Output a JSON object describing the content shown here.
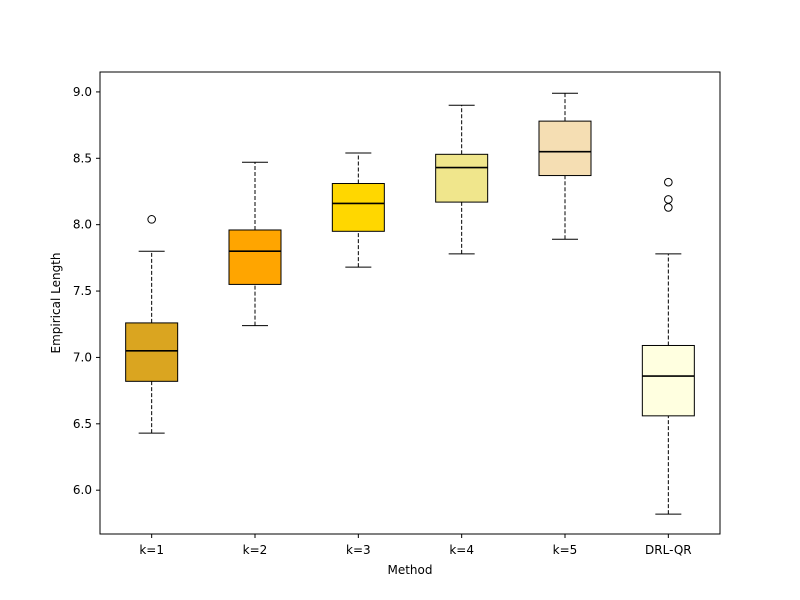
{
  "chart_data": {
    "type": "boxplot",
    "title": "",
    "xlabel": "Method",
    "ylabel": "Empirical Length",
    "ylim": [
      5.67,
      9.15
    ],
    "yticks": [
      6.0,
      6.5,
      7.0,
      7.5,
      8.0,
      8.5,
      9.0
    ],
    "ytick_labels": [
      "6.0",
      "6.5",
      "7.0",
      "7.5",
      "8.0",
      "8.5",
      "9.0"
    ],
    "categories": [
      "k=1",
      "k=2",
      "k=3",
      "k=4",
      "k=5",
      "DRL-QR"
    ],
    "boxes": [
      {
        "label": "k=1",
        "whisker_low": 6.43,
        "q1": 6.82,
        "median": 7.05,
        "q3": 7.26,
        "whisker_high": 7.8,
        "outliers": [
          8.04
        ],
        "color": "#DAA520"
      },
      {
        "label": "k=2",
        "whisker_low": 7.24,
        "q1": 7.55,
        "median": 7.8,
        "q3": 7.96,
        "whisker_high": 8.47,
        "outliers": [],
        "color": "#FFA500"
      },
      {
        "label": "k=3",
        "whisker_low": 7.68,
        "q1": 7.95,
        "median": 8.16,
        "q3": 8.31,
        "whisker_high": 8.54,
        "outliers": [],
        "color": "#FFD700"
      },
      {
        "label": "k=4",
        "whisker_low": 7.78,
        "q1": 8.17,
        "median": 8.43,
        "q3": 8.53,
        "whisker_high": 8.9,
        "outliers": [],
        "color": "#F0E68C"
      },
      {
        "label": "k=5",
        "whisker_low": 7.89,
        "q1": 8.37,
        "median": 8.55,
        "q3": 8.78,
        "whisker_high": 8.99,
        "outliers": [],
        "color": "#F5DEB3"
      },
      {
        "label": "DRL-QR",
        "whisker_low": 5.82,
        "q1": 6.56,
        "median": 6.86,
        "q3": 7.09,
        "whisker_high": 7.78,
        "outliers": [
          8.13,
          8.19,
          8.32
        ],
        "color": "#FFFFE0"
      }
    ]
  }
}
